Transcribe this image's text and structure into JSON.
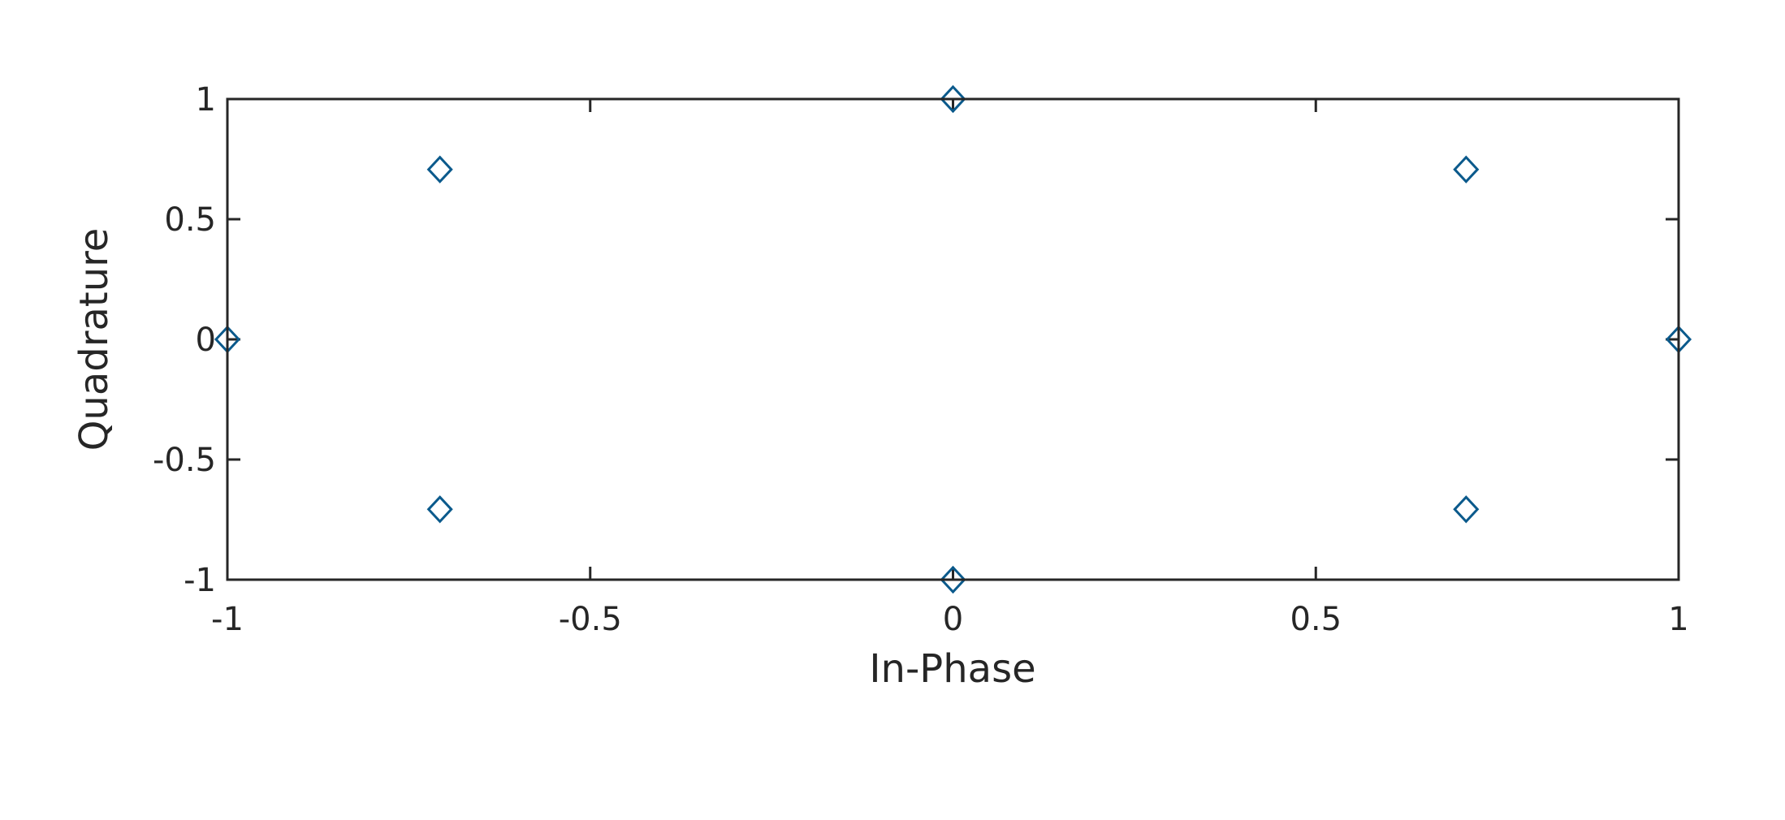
{
  "colors": {
    "marker": "#0b5a8c",
    "axis": "#262626",
    "background": "#ffffff"
  },
  "chart_data": {
    "type": "scatter",
    "title": "",
    "xlabel": "In-Phase",
    "ylabel": "Quadrature",
    "xlim": [
      -1,
      1
    ],
    "ylim": [
      -1,
      1
    ],
    "grid": false,
    "legend": "none",
    "marker": "diamond",
    "x_ticks": [
      -1,
      -0.5,
      0,
      0.5,
      1
    ],
    "x_tick_labels": [
      "-1",
      "-0.5",
      "0",
      "0.5",
      "1"
    ],
    "y_ticks": [
      -1,
      -0.5,
      0,
      0.5,
      1
    ],
    "y_tick_labels": [
      "-1",
      "-0.5",
      "0",
      "0.5",
      "1"
    ],
    "series": [
      {
        "points": [
          {
            "x": 1,
            "y": 0
          },
          {
            "x": 0.7071,
            "y": 0.7071
          },
          {
            "x": 0,
            "y": 1
          },
          {
            "x": -0.7071,
            "y": 0.7071
          },
          {
            "x": -1,
            "y": 0
          },
          {
            "x": -0.7071,
            "y": -0.7071
          },
          {
            "x": 0,
            "y": -1
          },
          {
            "x": 0.7071,
            "y": -0.7071
          }
        ]
      }
    ]
  }
}
